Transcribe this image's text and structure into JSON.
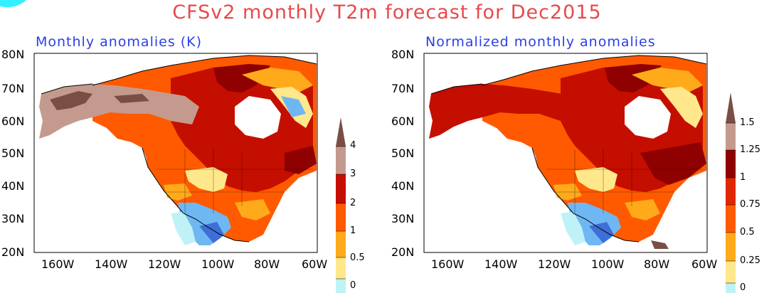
{
  "title": "CFSv2 monthly T2m forecast for Dec2015",
  "panels": [
    {
      "subtitle": "Monthly anomalies (K)",
      "lat_labels": [
        "80N",
        "70N",
        "60N",
        "50N",
        "40N",
        "30N",
        "20N"
      ],
      "lon_labels": [
        "160W",
        "140W",
        "120W",
        "100W",
        "80W",
        "60W"
      ],
      "colorbar": {
        "labels": [
          "0",
          "0.5",
          "1",
          "2",
          "3",
          "4"
        ],
        "colors": [
          "#bff2f7",
          "#ffe88c",
          "#ffaa1a",
          "#ff5a00",
          "#c40e00",
          "#8f0000",
          "#c59a8e",
          "#7a4e45"
        ]
      }
    },
    {
      "subtitle": "Normalized monthly anomalies",
      "lat_labels": [
        "80N",
        "70N",
        "60N",
        "50N",
        "40N",
        "30N",
        "20N"
      ],
      "lon_labels": [
        "160W",
        "140W",
        "120W",
        "100W",
        "80W",
        "60W"
      ],
      "colorbar": {
        "labels": [
          "0",
          "0.25",
          "0.5",
          "0.75",
          "1",
          "1.25",
          "1.5"
        ],
        "colors": [
          "#bff2f7",
          "#ffe88c",
          "#ffaa1a",
          "#ff5a00",
          "#e02800",
          "#c40e00",
          "#8f0000",
          "#c59a8e",
          "#7a4e45"
        ]
      }
    }
  ]
}
